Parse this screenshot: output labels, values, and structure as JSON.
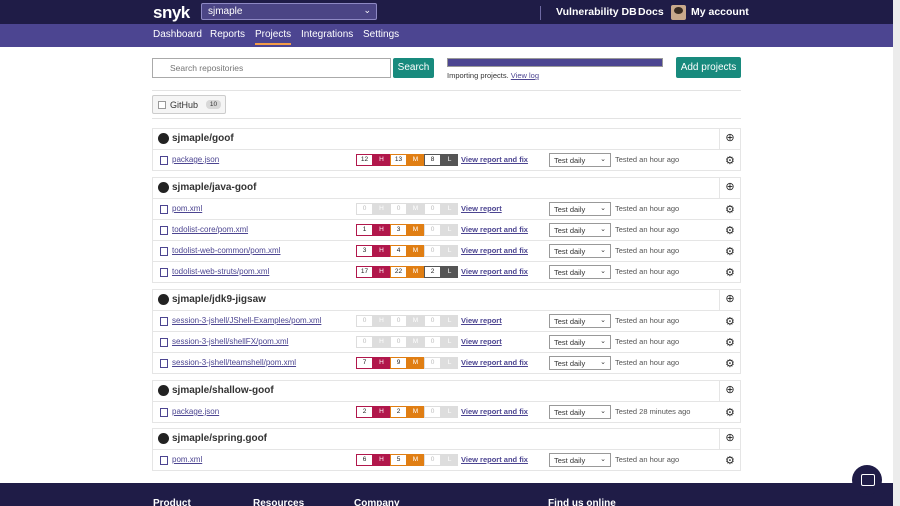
{
  "topbar": {
    "logo": "snyk",
    "org_selected": "sjmaple",
    "vulnerability_db": "Vulnerability DB",
    "docs": "Docs",
    "account": "My account"
  },
  "nav": {
    "items": [
      {
        "label": "Dashboard",
        "active": false
      },
      {
        "label": "Reports",
        "active": false
      },
      {
        "label": "Projects",
        "active": true
      },
      {
        "label": "Integrations",
        "active": false
      },
      {
        "label": "Settings",
        "active": false
      }
    ]
  },
  "toolbar": {
    "search_placeholder": "Search repositories",
    "search_button": "Search",
    "importing_text": "Importing projects.",
    "view_log": "View log",
    "add_projects": "Add projects"
  },
  "filter": {
    "github_label": "GitHub",
    "github_count": "10"
  },
  "groups": [
    {
      "repo": "sjmaple/goof",
      "projects": [
        {
          "file": "package.json",
          "type": "npm",
          "high": "12",
          "medium": "13",
          "low": "8",
          "link": "View report and fix",
          "freq": "Test daily",
          "tested": "Tested an hour ago"
        }
      ]
    },
    {
      "repo": "sjmaple/java-goof",
      "projects": [
        {
          "file": "pom.xml",
          "type": "maven",
          "high": "0",
          "medium": "0",
          "low": "0",
          "link": "View report",
          "freq": "Test daily",
          "tested": "Tested an hour ago"
        },
        {
          "file": "todolist-core/pom.xml",
          "type": "maven",
          "high": "1",
          "medium": "3",
          "low": "0",
          "link": "View report and fix",
          "freq": "Test daily",
          "tested": "Tested an hour ago"
        },
        {
          "file": "todolist-web-common/pom.xml",
          "type": "maven",
          "high": "3",
          "medium": "4",
          "low": "0",
          "link": "View report and fix",
          "freq": "Test daily",
          "tested": "Tested an hour ago"
        },
        {
          "file": "todolist-web-struts/pom.xml",
          "type": "maven",
          "high": "17",
          "medium": "22",
          "low": "2",
          "link": "View report and fix",
          "freq": "Test daily",
          "tested": "Tested an hour ago"
        }
      ]
    },
    {
      "repo": "sjmaple/jdk9-jigsaw",
      "projects": [
        {
          "file": "session-3-jshell/JShell-Examples/pom.xml",
          "type": "maven",
          "high": "0",
          "medium": "0",
          "low": "0",
          "link": "View report",
          "freq": "Test daily",
          "tested": "Tested an hour ago"
        },
        {
          "file": "session-3-jshell/shellFX/pom.xml",
          "type": "maven",
          "high": "0",
          "medium": "0",
          "low": "0",
          "link": "View report",
          "freq": "Test daily",
          "tested": "Tested an hour ago"
        },
        {
          "file": "session-3-jshell/teamshell/pom.xml",
          "type": "maven",
          "high": "7",
          "medium": "9",
          "low": "0",
          "link": "View report and fix",
          "freq": "Test daily",
          "tested": "Tested an hour ago"
        }
      ]
    },
    {
      "repo": "sjmaple/shallow-goof",
      "projects": [
        {
          "file": "package.json",
          "type": "npm",
          "high": "2",
          "medium": "2",
          "low": "0",
          "link": "View report and fix",
          "freq": "Test daily",
          "tested": "Tested 28 minutes ago"
        }
      ]
    },
    {
      "repo": "sjmaple/spring.goof",
      "projects": [
        {
          "file": "pom.xml",
          "type": "maven",
          "high": "6",
          "medium": "5",
          "low": "0",
          "link": "View report and fix",
          "freq": "Test daily",
          "tested": "Tested an hour ago"
        }
      ]
    }
  ],
  "severity_letters": {
    "high": "H",
    "medium": "M",
    "low": "L"
  },
  "footer": {
    "headings": [
      "Product",
      "Resources",
      "Company",
      "Find us online"
    ]
  },
  "colors": {
    "topbar": "#1f1c47",
    "subnav": "#4c4591",
    "accent_button": "#188a7d",
    "high": "#b1174b",
    "medium": "#e07e13",
    "low": "#555555"
  }
}
